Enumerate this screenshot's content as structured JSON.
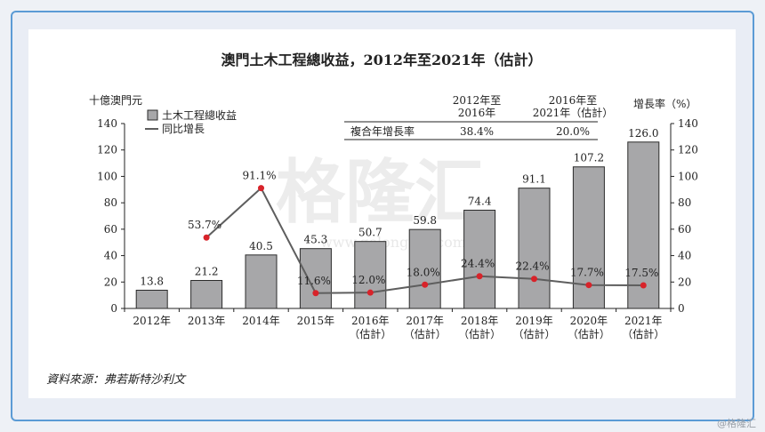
{
  "chart_data": {
    "type": "bar",
    "title": "澳門土木工程總收益，2012年至2021年（估計）",
    "ylabel_left": "十億澳門元",
    "ylabel_right": "增長率（%）",
    "categories": [
      {
        "year": "2012年",
        "sub": ""
      },
      {
        "year": "2013年",
        "sub": ""
      },
      {
        "year": "2014年",
        "sub": ""
      },
      {
        "year": "2015年",
        "sub": ""
      },
      {
        "year": "2016年",
        "sub": "（估計）"
      },
      {
        "year": "2017年",
        "sub": "（估計）"
      },
      {
        "year": "2018年",
        "sub": "（估計）"
      },
      {
        "year": "2019年",
        "sub": "（估計）"
      },
      {
        "year": "2020年",
        "sub": "（估計）"
      },
      {
        "year": "2021年",
        "sub": "（估計）"
      }
    ],
    "series": [
      {
        "name": "土木工程總收益",
        "type": "bar",
        "values": [
          13.8,
          21.2,
          40.5,
          45.3,
          50.7,
          59.8,
          74.4,
          91.1,
          107.2,
          126.0
        ],
        "labels": [
          "13.8",
          "21.2",
          "40.5",
          "45.3",
          "50.7",
          "59.8",
          "74.4",
          "91.1",
          "107.2",
          "126.0"
        ]
      },
      {
        "name": "同比增長",
        "type": "line",
        "values": [
          null,
          53.7,
          91.1,
          11.6,
          12.0,
          18.0,
          24.4,
          22.4,
          17.7,
          17.5
        ],
        "labels": [
          "",
          "53.7%",
          "91.1%",
          "11.6%",
          "12.0%",
          "18.0%",
          "24.4%",
          "22.4%",
          "17.7%",
          "17.5%"
        ]
      }
    ],
    "ylim_left": [
      0,
      140
    ],
    "ylim_right": [
      0,
      140
    ],
    "yticks": [
      "0",
      "20",
      "40",
      "60",
      "80",
      "100",
      "120",
      "140"
    ],
    "legend_position": "top-left",
    "cagr_table": {
      "col1_line1": "2012年至",
      "col1_line2": "2016年",
      "col2_line1": "2016年至",
      "col2_line2": "2021年（估計）",
      "row_label": "複合年增長率",
      "col1_value": "38.4%",
      "col2_value": "20.0%"
    },
    "source": "資料來源：弗若斯特沙利文"
  },
  "colors": {
    "bar_fill": "#a7a7a9",
    "bar_stroke": "#2b2b2b",
    "line": "#5e5e5e",
    "point": "#d8232a",
    "frame": "#5b9bd5"
  },
  "background_watermark": {
    "main": "格隆汇",
    "url": "www.gelonghui.com"
  },
  "corner_watermark": "@格隆汇"
}
